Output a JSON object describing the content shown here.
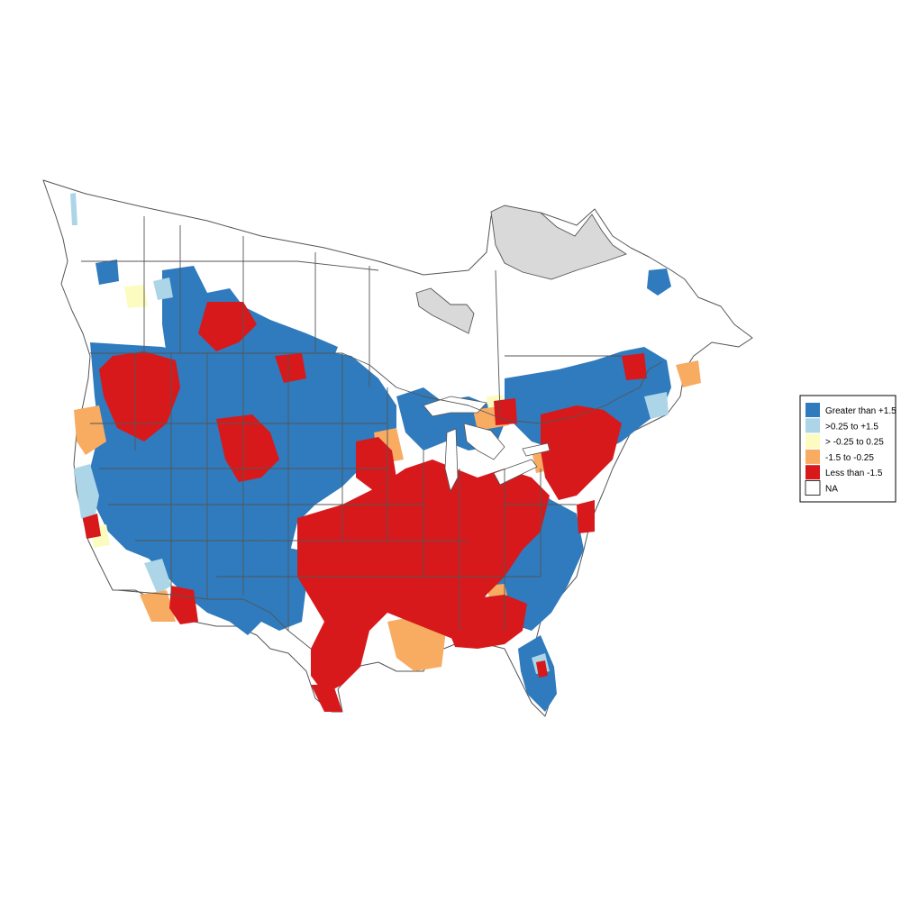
{
  "legend": {
    "items": [
      {
        "label": "Greater than +1.5",
        "color": "#2f7bbd"
      },
      {
        "label": ">0.25 to +1.5",
        "color": "#acd5e8"
      },
      {
        "label": "> -0.25 to 0.25",
        "color": "#fdfcc0"
      },
      {
        "label": "-1.5 to -0.25",
        "color": "#f8ac62"
      },
      {
        "label": "Less than -1.5",
        "color": "#d7191c"
      },
      {
        "label": "NA",
        "color": "#ffffff"
      }
    ]
  },
  "colors": {
    "boundary": "#555555",
    "excluded_region": "#d9d9d9",
    "background": "#ffffff"
  }
}
